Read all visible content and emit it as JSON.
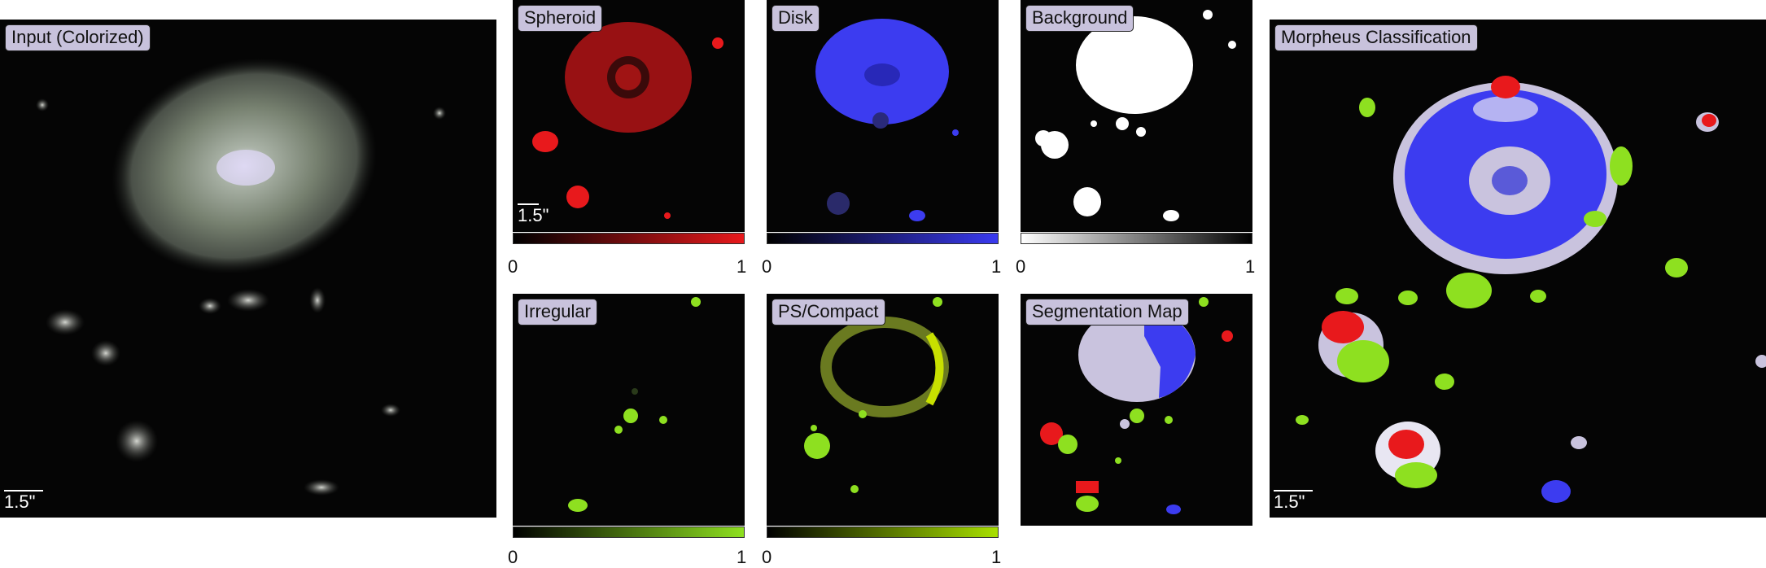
{
  "panels": {
    "input": {
      "label": "Input (Colorized)",
      "scale": "1.5\""
    },
    "spheroid": {
      "label": "Spheroid",
      "scale": "1.5\""
    },
    "disk": {
      "label": "Disk"
    },
    "background": {
      "label": "Background"
    },
    "irregular": {
      "label": "Irregular"
    },
    "ps_compact": {
      "label": "PS/Compact"
    },
    "segmentation": {
      "label": "Segmentation Map"
    },
    "morpheus": {
      "label": "Morpheus Classification",
      "scale": "1.5\""
    }
  },
  "colorbars": {
    "min_label": "0",
    "max_label": "1",
    "spheroid_color": "#e8191c",
    "disk_color": "#3a3af0",
    "background_color": "#000000",
    "irregular_color": "#8ee020",
    "ps_compact_color": "#a8e000"
  },
  "colors": {
    "spheroid": "#e8191c",
    "disk": "#3c3cf0",
    "irregular": "#8ee020",
    "ps_compact": "#b4d400",
    "segmentation_background_region": "#c9c3de",
    "label_background": "#c8c2dc"
  }
}
